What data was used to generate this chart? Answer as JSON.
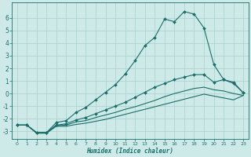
{
  "xlabel": "Humidex (Indice chaleur)",
  "background_color": "#ceeae8",
  "grid_color": "#aacfcd",
  "line_color": "#1a6e6a",
  "xlim": [
    -0.5,
    23.5
  ],
  "ylim": [
    -3.6,
    7.2
  ],
  "yticks": [
    -3,
    -2,
    -1,
    0,
    1,
    2,
    3,
    4,
    5,
    6
  ],
  "xticks": [
    0,
    1,
    2,
    3,
    4,
    5,
    6,
    7,
    8,
    9,
    10,
    11,
    12,
    13,
    14,
    15,
    16,
    17,
    18,
    19,
    20,
    21,
    22,
    23
  ],
  "line1_x": [
    0,
    1,
    2,
    3,
    4,
    5,
    6,
    7,
    8,
    9,
    10,
    11,
    12,
    13,
    14,
    15,
    16,
    17,
    18,
    19,
    20,
    21,
    22,
    23
  ],
  "line1_y": [
    -2.5,
    -2.5,
    -3.1,
    -3.1,
    -2.3,
    -2.15,
    -1.5,
    -1.1,
    -0.5,
    0.1,
    0.7,
    1.55,
    2.6,
    3.8,
    4.45,
    5.9,
    5.7,
    6.5,
    6.3,
    5.2,
    2.3,
    1.1,
    0.9,
    0.05
  ],
  "line2_x": [
    0,
    1,
    2,
    3,
    4,
    5,
    6,
    7,
    8,
    9,
    10,
    11,
    12,
    13,
    14,
    15,
    16,
    17,
    18,
    19,
    20,
    21,
    22,
    23
  ],
  "line2_y": [
    -2.5,
    -2.5,
    -3.1,
    -3.1,
    -2.5,
    -2.4,
    -2.1,
    -1.9,
    -1.6,
    -1.3,
    -1.0,
    -0.7,
    -0.3,
    0.1,
    0.5,
    0.8,
    1.1,
    1.3,
    1.5,
    1.5,
    0.9,
    1.1,
    0.8,
    0.05
  ],
  "line3_x": [
    0,
    1,
    2,
    3,
    4,
    5,
    6,
    7,
    8,
    9,
    10,
    11,
    12,
    13,
    14,
    15,
    16,
    17,
    18,
    19,
    20,
    21,
    22,
    23
  ],
  "line3_y": [
    -2.5,
    -2.5,
    -3.1,
    -3.1,
    -2.55,
    -2.5,
    -2.25,
    -2.15,
    -1.9,
    -1.7,
    -1.5,
    -1.25,
    -1.05,
    -0.8,
    -0.55,
    -0.25,
    0.0,
    0.2,
    0.4,
    0.5,
    0.3,
    0.2,
    0.0,
    -0.15
  ],
  "line4_x": [
    0,
    1,
    2,
    3,
    4,
    5,
    6,
    7,
    8,
    9,
    10,
    11,
    12,
    13,
    14,
    15,
    16,
    17,
    18,
    19,
    20,
    21,
    22,
    23
  ],
  "line4_y": [
    -2.5,
    -2.5,
    -3.15,
    -3.15,
    -2.6,
    -2.6,
    -2.45,
    -2.35,
    -2.2,
    -2.05,
    -1.85,
    -1.65,
    -1.45,
    -1.25,
    -1.05,
    -0.85,
    -0.65,
    -0.45,
    -0.25,
    -0.05,
    -0.2,
    -0.35,
    -0.5,
    -0.15
  ]
}
